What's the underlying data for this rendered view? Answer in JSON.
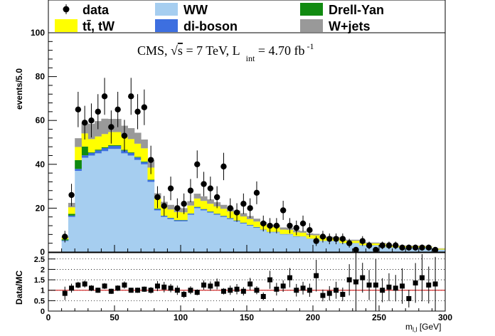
{
  "legend": {
    "entries": [
      {
        "key": "data",
        "label": "data",
        "style": "marker"
      },
      {
        "key": "ww",
        "label": "WW",
        "style": "box"
      },
      {
        "key": "dy",
        "label": "Drell-Yan",
        "style": "box"
      },
      {
        "key": "ttw",
        "label": "tt̄, tW",
        "style": "box"
      },
      {
        "key": "vv",
        "label": "di-boson",
        "style": "box"
      },
      {
        "key": "wj",
        "label": "W+jets",
        "style": "box"
      }
    ]
  },
  "annotation": {
    "cms": "CMS, ",
    "sqrt": "s",
    "energy": " = 7 TeV, L",
    "sub": "int",
    "lumi": " = 4.70 fb",
    "sup": "-1"
  },
  "chart_data": [
    {
      "type": "bar",
      "subtype": "stacked-histogram",
      "ylabel": "events/5.0",
      "xlabel": "",
      "xlim": [
        0,
        300
      ],
      "ylim": [
        0,
        100
      ],
      "yticks": [
        0,
        20,
        40,
        60,
        80,
        100
      ],
      "bin_edges": [
        10,
        15,
        20,
        25,
        30,
        35,
        40,
        45,
        50,
        55,
        60,
        65,
        70,
        75,
        80,
        85,
        90,
        95,
        100,
        105,
        110,
        115,
        120,
        125,
        130,
        135,
        140,
        145,
        150,
        155,
        160,
        165,
        170,
        175,
        180,
        185,
        190,
        195,
        200,
        205,
        210,
        215,
        220,
        225,
        230,
        235,
        240,
        245,
        250,
        255,
        260,
        265,
        270,
        275,
        280,
        285,
        290,
        295,
        300
      ],
      "colors": {
        "ww": "#a6cef0",
        "vv": "#3d6fe0",
        "dy": "#108a10",
        "ttw": "#ffff00",
        "wj": "#999999",
        "data": "#000000"
      },
      "series": [
        {
          "key": "ww",
          "name": "WW",
          "values": [
            5,
            16,
            37,
            43,
            44,
            45,
            46,
            47,
            47,
            45,
            44,
            42,
            40,
            32,
            19,
            16,
            15,
            14,
            14,
            17,
            20,
            19,
            18,
            17,
            16,
            15,
            14,
            13,
            12,
            11,
            10,
            9,
            9,
            8,
            8,
            7,
            7,
            6,
            6,
            5,
            5,
            5,
            4,
            4,
            4,
            3,
            3,
            3,
            3,
            2,
            2,
            2,
            2,
            2,
            2,
            2,
            1,
            1
          ]
        },
        {
          "key": "vv",
          "name": "di-boson",
          "values": [
            0.3,
            0.6,
            0.9,
            1.1,
            1.2,
            1.3,
            1.4,
            1.4,
            1.4,
            1.3,
            1.2,
            1.1,
            1.0,
            0.8,
            0.6,
            0.5,
            0.5,
            0.5,
            0.5,
            0.5,
            0.5,
            0.5,
            0.4,
            0.4,
            0.4,
            0.4,
            0.3,
            0.3,
            0.3,
            0.3,
            0.2,
            0.2,
            0.2,
            0.2,
            0.2,
            0.2,
            0.1,
            0.1,
            0.1,
            0.1,
            0.1,
            0.1,
            0.1,
            0.1,
            0.1,
            0.1,
            0.1,
            0.1,
            0.1,
            0.1,
            0.1,
            0.1,
            0.1,
            0.1,
            0.1,
            0.1,
            0.1,
            0.1
          ]
        },
        {
          "key": "dy",
          "name": "Drell-Yan",
          "values": [
            0.5,
            0.8,
            4,
            4,
            0.3,
            0.4,
            0.4,
            0.3,
            0.3,
            0.3,
            0.3,
            0.3,
            0.3,
            0.2,
            0.2,
            0.1,
            0.1,
            0.1,
            0.1,
            0.1,
            0.1,
            0.1,
            0.1,
            0.1,
            0.1,
            0.1,
            0.1,
            0.1,
            0.1,
            0.1,
            0,
            0,
            0,
            0,
            0,
            0,
            0,
            0,
            0,
            0,
            0,
            0,
            0,
            0,
            0,
            0,
            0,
            0,
            0,
            0,
            0,
            0,
            0,
            0,
            0,
            0,
            0,
            0
          ]
        },
        {
          "key": "ttw",
          "name": "tt̄, tW",
          "values": [
            0.8,
            3,
            6,
            6,
            6,
            6,
            6,
            6,
            6,
            6,
            6,
            6,
            6,
            5.5,
            4.5,
            4,
            3.8,
            3.6,
            3.5,
            3.6,
            3.8,
            3.7,
            3.5,
            3.3,
            3.2,
            3.0,
            2.9,
            2.8,
            2.6,
            2.5,
            2.3,
            2.2,
            2.1,
            2.0,
            1.9,
            1.8,
            1.7,
            1.6,
            1.5,
            1.4,
            1.3,
            1.2,
            1.1,
            1.0,
            1.0,
            0.9,
            0.8,
            0.8,
            0.7,
            0.7,
            0.6,
            0.6,
            0.5,
            0.5,
            0.5,
            0.4,
            0.4,
            0.4
          ]
        },
        {
          "key": "wj",
          "name": "W+jets",
          "values": [
            0.4,
            2,
            4,
            5,
            7,
            7,
            7,
            6,
            6,
            5,
            5,
            5,
            4,
            3.5,
            2.5,
            2.3,
            2.1,
            2.0,
            1.9,
            2.0,
            2.2,
            2.1,
            2.0,
            1.9,
            1.8,
            1.7,
            1.6,
            1.5,
            1.4,
            1.3,
            1.2,
            1.1,
            1.0,
            1.0,
            0.9,
            0.9,
            0.8,
            0.8,
            0.7,
            0.7,
            0.6,
            0.6,
            0.6,
            0.5,
            0.5,
            0.5,
            0.4,
            0.4,
            0.4,
            0.4,
            0.3,
            0.3,
            0.3,
            0.3,
            0.3,
            0.2,
            0.2,
            0.2
          ]
        }
      ],
      "data_points": {
        "name": "data",
        "x": [
          12.5,
          17.5,
          22.5,
          27.5,
          32.5,
          37.5,
          42.5,
          47.5,
          52.5,
          57.5,
          62.5,
          67.5,
          72.5,
          77.5,
          82.5,
          87.5,
          92.5,
          97.5,
          102.5,
          107.5,
          112.5,
          117.5,
          122.5,
          127.5,
          132.5,
          137.5,
          142.5,
          147.5,
          152.5,
          157.5,
          162.5,
          167.5,
          172.5,
          177.5,
          182.5,
          187.5,
          192.5,
          197.5,
          202.5,
          207.5,
          212.5,
          217.5,
          222.5,
          227.5,
          232.5,
          237.5,
          242.5,
          247.5,
          252.5,
          257.5,
          262.5,
          267.5,
          272.5,
          277.5,
          282.5,
          287.5,
          292.5
        ],
        "y": [
          7,
          26,
          65,
          59,
          60,
          64,
          71,
          57,
          65,
          53,
          71,
          64,
          66,
          42,
          25,
          21,
          29,
          20,
          22,
          28,
          40,
          31,
          29,
          25,
          39,
          20,
          18,
          22,
          20,
          27,
          13,
          12,
          12,
          19,
          12,
          11,
          13,
          10,
          5,
          7,
          6,
          6,
          6,
          4,
          1,
          5,
          3,
          1,
          3,
          3,
          3,
          2,
          2,
          2,
          2,
          2,
          1
        ]
      }
    },
    {
      "type": "scatter",
      "subtype": "ratio",
      "ylabel": "Data/MC",
      "xlabel": "m",
      "xlabel_sub": "l,l",
      "xlabel_unit": " [GeV]",
      "xlim": [
        0,
        300
      ],
      "ylim": [
        0,
        2.8
      ],
      "yticks": [
        0,
        0.5,
        1,
        1.5,
        2,
        2.5
      ],
      "ytick_labels": [
        "0",
        "0.5",
        "1",
        "1.5",
        "2",
        "2.5"
      ],
      "xticks": [
        0,
        50,
        100,
        150,
        200,
        250,
        300
      ],
      "xtick_labels": [
        "0",
        "50",
        "100",
        "150",
        "200",
        "250",
        "300"
      ],
      "reference_line": 1,
      "reference_color": "#cc0000",
      "x": [
        12.5,
        17.5,
        22.5,
        27.5,
        32.5,
        37.5,
        42.5,
        47.5,
        52.5,
        57.5,
        62.5,
        67.5,
        72.5,
        77.5,
        82.5,
        87.5,
        92.5,
        97.5,
        102.5,
        107.5,
        112.5,
        117.5,
        122.5,
        127.5,
        132.5,
        137.5,
        142.5,
        147.5,
        152.5,
        157.5,
        162.5,
        167.5,
        172.5,
        177.5,
        182.5,
        187.5,
        192.5,
        197.5,
        202.5,
        207.5,
        212.5,
        217.5,
        222.5,
        227.5,
        232.5,
        237.5,
        242.5,
        247.5,
        252.5,
        257.5,
        262.5,
        267.5,
        272.5,
        277.5,
        282.5,
        287.5,
        292.5
      ],
      "y": [
        0.85,
        1.1,
        1.25,
        1.3,
        1.1,
        1.0,
        1.2,
        0.95,
        1.1,
        1.25,
        1.0,
        1.0,
        1.05,
        1.0,
        1.2,
        1.15,
        1.1,
        1.0,
        0.8,
        1.0,
        0.9,
        1.25,
        1.2,
        1.3,
        0.95,
        1.0,
        1.05,
        0.95,
        1.3,
        1.0,
        0.7,
        1.5,
        1.05,
        1.2,
        1.6,
        1.0,
        1.1,
        1.0,
        1.7,
        0.75,
        0.85,
        1.0,
        0.8,
        1.5,
        1.4,
        1.6,
        1.25,
        1.25,
        1.0,
        1.15,
        1.1,
        1.2,
        0.6,
        1.35,
        1.6,
        1.25,
        1.3
      ]
    }
  ]
}
